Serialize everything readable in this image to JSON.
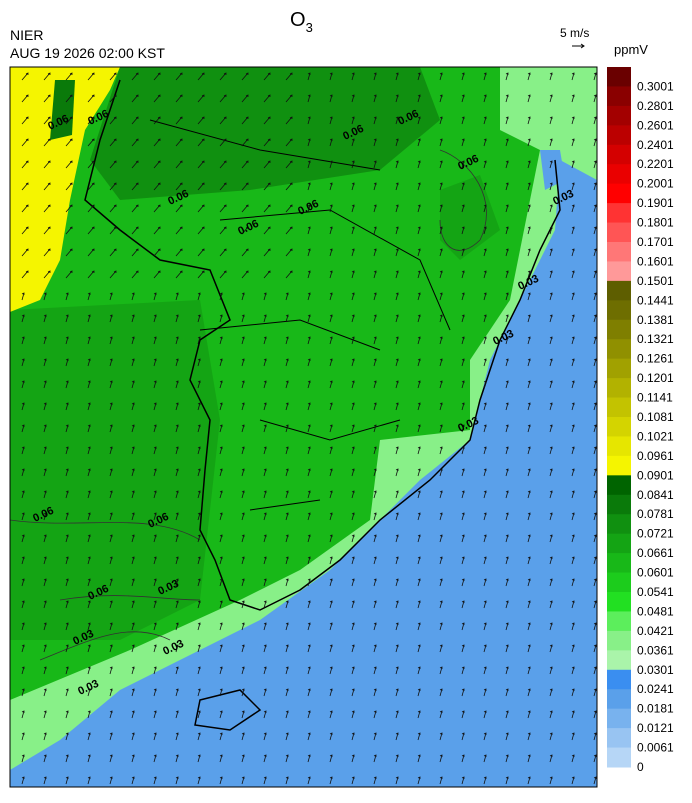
{
  "header": {
    "title": "O",
    "title_subscript": "3",
    "source": "NIER",
    "datetime": "AUG 19 2026 02:00 KST",
    "wind_scale": "5 m/s"
  },
  "colorbar": {
    "unit": "ppmV",
    "labels": [
      "0.3001",
      "0.2801",
      "0.2601",
      "0.2401",
      "0.2201",
      "0.2001",
      "0.1901",
      "0.1801",
      "0.1701",
      "0.1601",
      "0.1501",
      "0.1441",
      "0.1381",
      "0.1321",
      "0.1261",
      "0.1201",
      "0.1141",
      "0.1081",
      "0.1021",
      "0.0961",
      "0.0901",
      "0.0841",
      "0.0781",
      "0.0721",
      "0.0661",
      "0.0601",
      "0.0541",
      "0.0481",
      "0.0421",
      "0.0361",
      "0.0301",
      "0.0241",
      "0.0181",
      "0.0121",
      "0.0061",
      "0"
    ],
    "colors": [
      "#6a0000",
      "#8a0000",
      "#a30000",
      "#bb0000",
      "#d40000",
      "#ea0000",
      "#ff0000",
      "#ff3333",
      "#ff5555",
      "#ff7777",
      "#ff9999",
      "#5e5e00",
      "#6e6e00",
      "#7f7f00",
      "#909000",
      "#a1a100",
      "#b2b200",
      "#c3c300",
      "#d4d400",
      "#e6e600",
      "#f5f500",
      "#006400",
      "#0a7a0a",
      "#109010",
      "#14a414",
      "#18b818",
      "#1ccc1c",
      "#22e022",
      "#5cee5c",
      "#88f088",
      "#aaf4aa",
      "#3a8ef0",
      "#5aa0ea",
      "#78b2ee",
      "#98c4f2",
      "#b6d6f6"
    ]
  },
  "contour_labels": [
    "0.06",
    "0.06",
    "0.06",
    "0.06",
    "0.06",
    "0.06",
    "0.06",
    "0.06",
    "0.06",
    "0.06",
    "0.06",
    "0.03",
    "0.03",
    "0.03",
    "0.03",
    "0.03",
    "0.03",
    "0.03",
    "0.03"
  ]
}
